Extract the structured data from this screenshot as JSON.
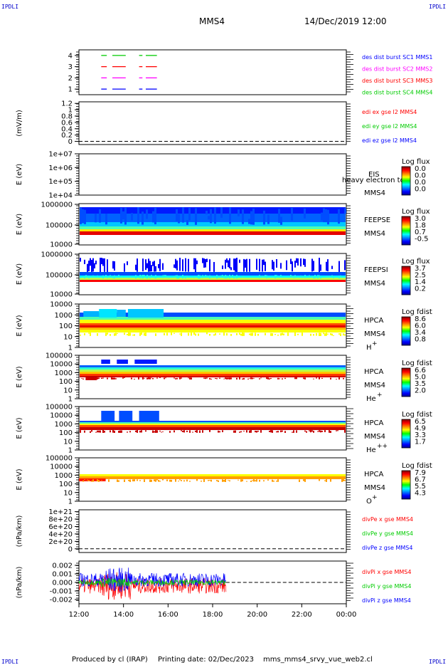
{
  "header": {
    "title": "MMS4",
    "date": "14/Dec/2019 12:00",
    "corner_label": "IPDLI"
  },
  "footer": {
    "produced_by": "Produced by cl (IRAP)",
    "printing_date": "Printing date: 02/Dec/2023",
    "filename": "mms_mms4_srvy_vue_web2.cl"
  },
  "colors": {
    "red": "#ff0000",
    "green": "#00cc00",
    "blue": "#0000ff",
    "magenta": "#ff00ff"
  },
  "chart_data": [
    {
      "type": "line",
      "id": "burst",
      "ylim": [
        0.5,
        4.5
      ],
      "y_ticks": [
        "1",
        "2",
        "3",
        "4"
      ],
      "legend": [
        {
          "label": "des dist burst SC1 MMS1",
          "color": "#0000ff"
        },
        {
          "label": "des dist burst SC2 MMS2",
          "color": "#ff00ff"
        },
        {
          "label": "des dist burst SC3 MMS3",
          "color": "#ff0000"
        },
        {
          "label": "des dist burst SC4 MMS4",
          "color": "#00cc00"
        }
      ],
      "segments": [
        {
          "level": 4,
          "color": "#00cc00",
          "intervals": [
            [
              13.0,
              13.25
            ],
            [
              13.5,
              14.1
            ],
            [
              14.7,
              14.85
            ],
            [
              15.0,
              15.5
            ]
          ]
        },
        {
          "level": 3,
          "color": "#ff0000",
          "intervals": [
            [
              13.0,
              13.25
            ],
            [
              13.5,
              14.1
            ],
            [
              14.7,
              14.85
            ],
            [
              15.0,
              15.5
            ]
          ]
        },
        {
          "level": 2,
          "color": "#ff00ff",
          "intervals": [
            [
              13.0,
              13.25
            ],
            [
              13.5,
              14.1
            ],
            [
              14.7,
              14.85
            ],
            [
              15.0,
              15.5
            ]
          ]
        },
        {
          "level": 1,
          "color": "#0000ff",
          "intervals": [
            [
              13.0,
              13.25
            ],
            [
              13.5,
              14.1
            ],
            [
              14.7,
              14.85
            ],
            [
              15.0,
              15.5
            ]
          ]
        }
      ]
    },
    {
      "type": "line",
      "id": "edi",
      "ylabel": "(mV/m)",
      "ylim": [
        -0.1,
        1.25
      ],
      "y_ticks": [
        "1.2",
        "1",
        "0.8",
        "0.6",
        "0.4",
        "0.2",
        "0"
      ],
      "legend": [
        {
          "label": "edi ex gse l2 MMS4",
          "color": "#ff0000"
        },
        {
          "label": "edi ey gse l2 MMS4",
          "color": "#00cc00"
        },
        {
          "label": "edi ez gse l2 MMS4",
          "color": "#0000ff"
        }
      ]
    },
    {
      "type": "heatmap",
      "id": "eis",
      "ylabel": "E (eV)",
      "y_ticks": [
        "1e+07",
        "1e+06",
        "1e+05",
        "1e+04"
      ],
      "instrument": "EIS",
      "spacecraft": "MMS4",
      "species_note": "heavy electron tof",
      "colorbar_title": "Log flux",
      "colorbar_ticks": [
        "0.0",
        "0.0",
        "0.0",
        "0.0"
      ]
    },
    {
      "type": "heatmap",
      "id": "feepse",
      "ylabel": "E (eV)",
      "y_ticks": [
        "1000000",
        "100000",
        "10000"
      ],
      "instrument": "FEEPSE",
      "spacecraft": "MMS4",
      "colorbar_title": "Log flux",
      "colorbar_ticks": [
        "3.0",
        "1.8",
        "0.7",
        "-0.5"
      ]
    },
    {
      "type": "heatmap",
      "id": "feepsi",
      "ylabel": "E (eV)",
      "y_ticks": [
        "1000000",
        "100000",
        "10000"
      ],
      "instrument": "FEEPSI",
      "spacecraft": "MMS4",
      "colorbar_title": "Log flux",
      "colorbar_ticks": [
        "3.7",
        "2.5",
        "1.4",
        "0.2"
      ]
    },
    {
      "type": "heatmap",
      "id": "hpca_h",
      "ylabel": "E (eV)",
      "y_ticks": [
        "10000",
        "1000",
        "100",
        "10",
        "1"
      ],
      "instrument": "HPCA",
      "spacecraft": "MMS4",
      "species": "H",
      "charge": "+",
      "colorbar_title": "Log fdist",
      "colorbar_ticks": [
        "8.6",
        "6.0",
        "3.4",
        "0.8"
      ]
    },
    {
      "type": "heatmap",
      "id": "hpca_he",
      "ylabel": "E (eV)",
      "y_ticks": [
        "100000",
        "10000",
        "1000",
        "100",
        "10",
        "1"
      ],
      "instrument": "HPCA",
      "spacecraft": "MMS4",
      "species": "He",
      "charge": "+",
      "colorbar_title": "Log fdist",
      "colorbar_ticks": [
        "6.6",
        "5.0",
        "3.5",
        "2.0"
      ]
    },
    {
      "type": "heatmap",
      "id": "hpca_hepp",
      "ylabel": "E (eV)",
      "y_ticks": [
        "100000",
        "10000",
        "1000",
        "100",
        "10",
        "1"
      ],
      "instrument": "HPCA",
      "spacecraft": "MMS4",
      "species": "He",
      "charge": "++",
      "colorbar_title": "Log fdist",
      "colorbar_ticks": [
        "6.5",
        "4.9",
        "3.3",
        "1.7"
      ]
    },
    {
      "type": "heatmap",
      "id": "hpca_o",
      "ylabel": "E (eV)",
      "y_ticks": [
        "100000",
        "10000",
        "1000",
        "100",
        "10",
        "1"
      ],
      "instrument": "HPCA",
      "spacecraft": "MMS4",
      "species": "O",
      "charge": "+",
      "colorbar_title": "Log fdist",
      "colorbar_ticks": [
        "7.9",
        "6.7",
        "5.5",
        "4.3"
      ]
    },
    {
      "type": "line",
      "id": "divpe",
      "ylabel": "(nPa/km)",
      "ylim": [
        -1e+20,
        1.05e+21
      ],
      "y_ticks": [
        "1e+21",
        "8e+20",
        "6e+20",
        "4e+20",
        "2e+20",
        "0"
      ],
      "legend": [
        {
          "label": "divPe x gse MMS4",
          "color": "#ff0000"
        },
        {
          "label": "divPe y gse MMS4",
          "color": "#00cc00"
        },
        {
          "label": "divPe z gse MMS4",
          "color": "#0000ff"
        }
      ]
    },
    {
      "type": "line",
      "id": "divpi",
      "ylabel": "(nPa/km)",
      "ylim": [
        -0.0025,
        0.0025
      ],
      "y_ticks": [
        "0.002",
        "0.001",
        "0.000",
        "-0.001",
        "-0.002"
      ],
      "data_end_hour": 18.6,
      "legend": [
        {
          "label": "divPi x gse MMS4",
          "color": "#ff0000"
        },
        {
          "label": "divPi y gse MMS4",
          "color": "#00cc00"
        },
        {
          "label": "divPi z gse MMS4",
          "color": "#0000ff"
        }
      ]
    }
  ],
  "x_axis": {
    "range_hours": [
      12,
      24
    ],
    "tick_labels": [
      "12:00",
      "14:00",
      "16:00",
      "18:00",
      "20:00",
      "22:00",
      "00:00"
    ]
  }
}
